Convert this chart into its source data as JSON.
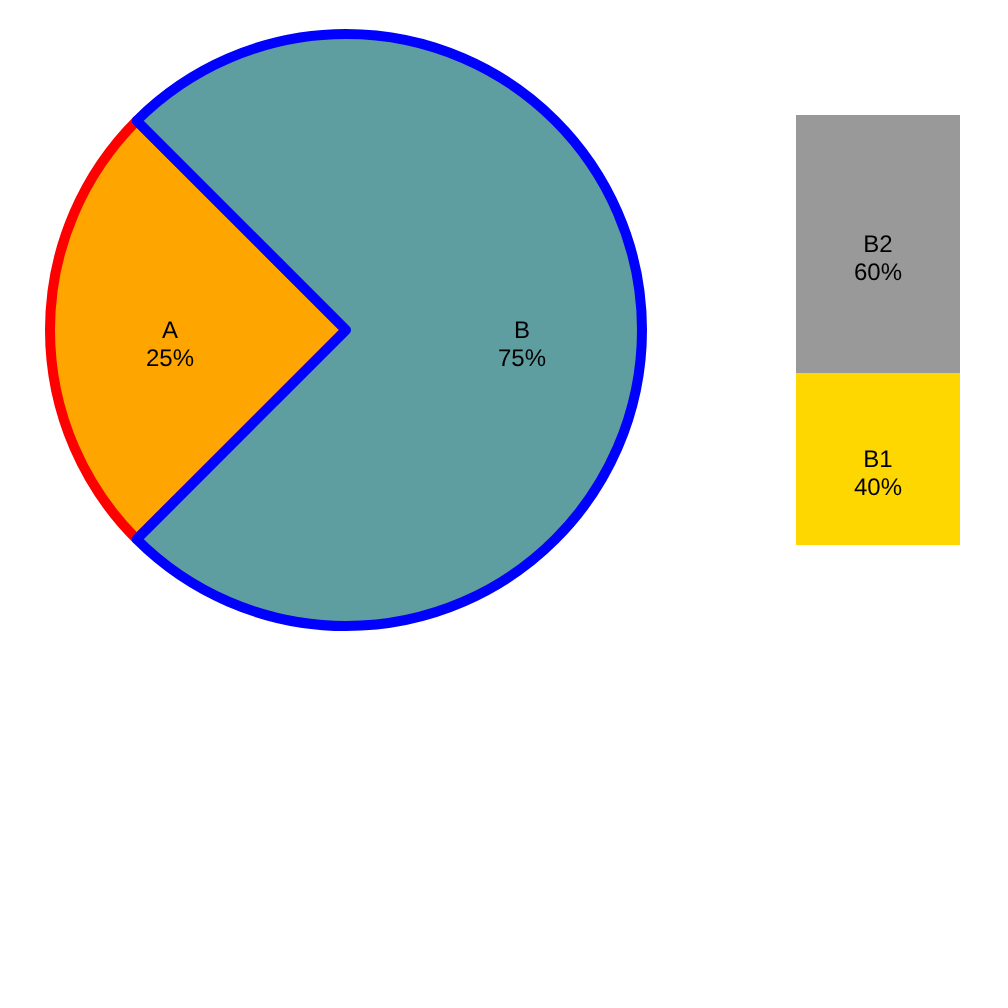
{
  "chart_data": [
    {
      "type": "pie",
      "categories": [
        "A",
        "B"
      ],
      "values": [
        25,
        75
      ],
      "colors": [
        "#ffa500",
        "#5f9ea0"
      ],
      "value_labels": [
        "25%",
        "75%"
      ],
      "legend": false
    },
    {
      "type": "bar",
      "stacked": true,
      "categories": [
        null
      ],
      "ylim": [
        0,
        100
      ],
      "tick_labels": false,
      "legend": false,
      "series": [
        {
          "name": "B1",
          "color": "#ffd700",
          "values": [
            40
          ],
          "value_labels": [
            "40%"
          ]
        },
        {
          "name": "B2",
          "color": "#999999",
          "values": [
            60
          ],
          "value_labels": [
            "60%"
          ]
        }
      ]
    }
  ]
}
